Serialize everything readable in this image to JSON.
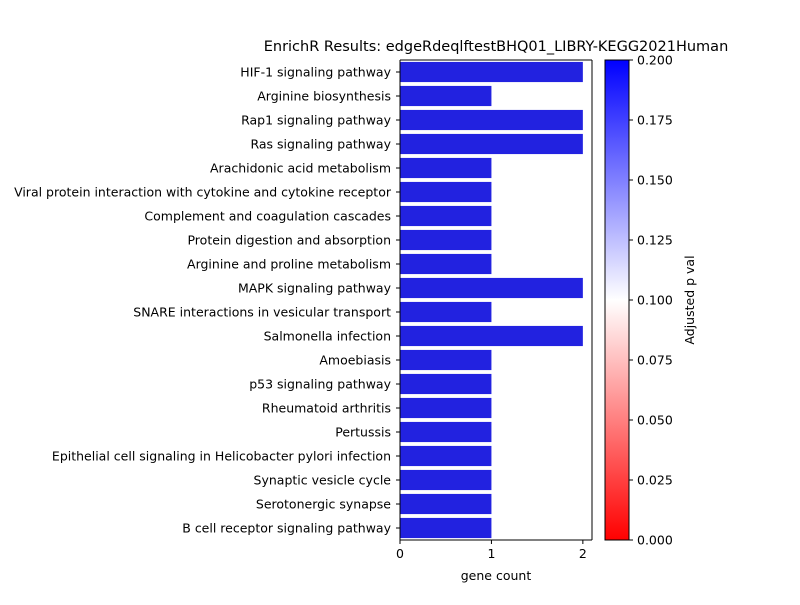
{
  "chart_data": {
    "type": "bar",
    "orientation": "horizontal",
    "title": "EnrichR Results: edgeRdeqlftestBHQ01_LIBRY-KEGG2021Human",
    "xlabel": "gene count",
    "ylabel": "",
    "xlim": [
      0,
      2.1
    ],
    "x_ticks": [
      "0",
      "1",
      "2"
    ],
    "grid": false,
    "bar_color": "#2222e0",
    "categories": [
      "HIF-1 signaling pathway",
      "Arginine biosynthesis",
      "Rap1 signaling pathway",
      "Ras signaling pathway",
      "Arachidonic acid metabolism",
      "Viral protein interaction with cytokine and cytokine receptor",
      "Complement and coagulation cascades",
      "Protein digestion and absorption",
      "Arginine and proline metabolism",
      "MAPK signaling pathway",
      "SNARE interactions in vesicular transport",
      "Salmonella infection",
      "Amoebiasis",
      "p53 signaling pathway",
      "Rheumatoid arthritis",
      "Pertussis",
      "Epithelial cell signaling in Helicobacter pylori infection",
      "Synaptic vesicle cycle",
      "Serotonergic synapse",
      "B cell receptor signaling pathway"
    ],
    "values": [
      2,
      1,
      2,
      2,
      1,
      1,
      1,
      1,
      1,
      2,
      1,
      2,
      1,
      1,
      1,
      1,
      1,
      1,
      1,
      1
    ],
    "colorbar": {
      "label": "Adjusted p val",
      "range": [
        0.0,
        0.2
      ],
      "ticks": [
        "0.000",
        "0.025",
        "0.050",
        "0.075",
        "0.100",
        "0.125",
        "0.150",
        "0.175",
        "0.200"
      ],
      "colormap": [
        "#ff0000",
        "#ffffff",
        "#0000ff"
      ]
    }
  }
}
